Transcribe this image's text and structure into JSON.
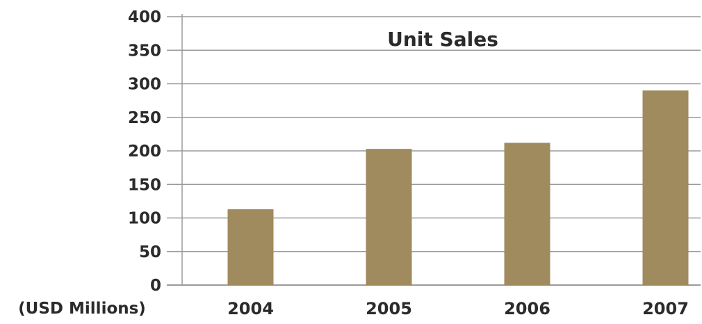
{
  "chart_data": {
    "type": "bar",
    "title": "Unit Sales",
    "unit_label": "(USD Millions)",
    "categories": [
      "2004",
      "2005",
      "2006",
      "2007"
    ],
    "values": [
      113,
      203,
      212,
      290
    ],
    "ylim": [
      0,
      400
    ],
    "yticks": [
      0,
      50,
      100,
      150,
      200,
      250,
      300,
      350,
      400
    ],
    "grid": true,
    "legend": false,
    "bar_color": "#a08b5f",
    "grid_color": "#9a9a9a",
    "text_color": "#2b2b2b"
  }
}
